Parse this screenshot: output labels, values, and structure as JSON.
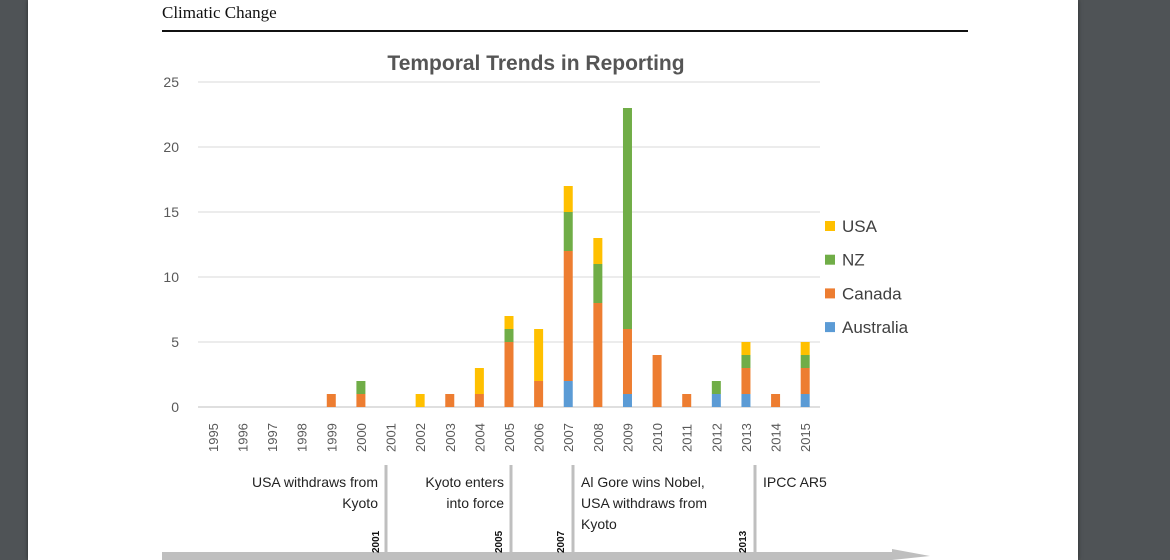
{
  "header": {
    "journal": "Climatic Change"
  },
  "chart_data": {
    "type": "bar",
    "stacked": true,
    "title": "Temporal Trends in Reporting",
    "categories": [
      "1995",
      "1996",
      "1997",
      "1998",
      "1999",
      "2000",
      "2001",
      "2002",
      "2003",
      "2004",
      "2005",
      "2006",
      "2007",
      "2008",
      "2009",
      "2010",
      "2011",
      "2012",
      "2013",
      "2014",
      "2015"
    ],
    "ylim": [
      0,
      25
    ],
    "yticks": [
      0,
      5,
      10,
      15,
      20,
      25
    ],
    "grid": true,
    "legend_position": "right",
    "series": [
      {
        "name": "Australia",
        "color": "#5b9bd5",
        "values": [
          0,
          0,
          0,
          0,
          0,
          0,
          0,
          0,
          0,
          0,
          0,
          0,
          2,
          0,
          1,
          0,
          0,
          1,
          1,
          0,
          1
        ]
      },
      {
        "name": "Canada",
        "color": "#ed7d31",
        "values": [
          0,
          0,
          0,
          0,
          1,
          1,
          0,
          0,
          1,
          1,
          5,
          2,
          10,
          8,
          5,
          4,
          1,
          0,
          2,
          1,
          2
        ]
      },
      {
        "name": "NZ",
        "color": "#70ad47",
        "values": [
          0,
          0,
          0,
          0,
          0,
          1,
          0,
          0,
          0,
          0,
          1,
          0,
          3,
          3,
          17,
          0,
          0,
          1,
          1,
          0,
          1
        ]
      },
      {
        "name": "USA",
        "color": "#ffc000",
        "values": [
          0,
          0,
          0,
          0,
          0,
          0,
          0,
          1,
          0,
          2,
          1,
          4,
          2,
          2,
          0,
          0,
          0,
          0,
          1,
          0,
          1
        ]
      }
    ]
  },
  "timeline": {
    "events": [
      {
        "text_lines": [
          "USA withdraws from",
          "Kyoto"
        ],
        "year": "2001"
      },
      {
        "text_lines": [
          "Kyoto enters",
          "into force"
        ],
        "year": "2005"
      },
      {
        "text_lines": [
          "Al Gore wins Nobel,",
          "USA withdraws from",
          "Kyoto"
        ],
        "year": "2007"
      },
      {
        "text_lines": [
          "IPCC AR5"
        ],
        "year": "2013"
      }
    ]
  }
}
